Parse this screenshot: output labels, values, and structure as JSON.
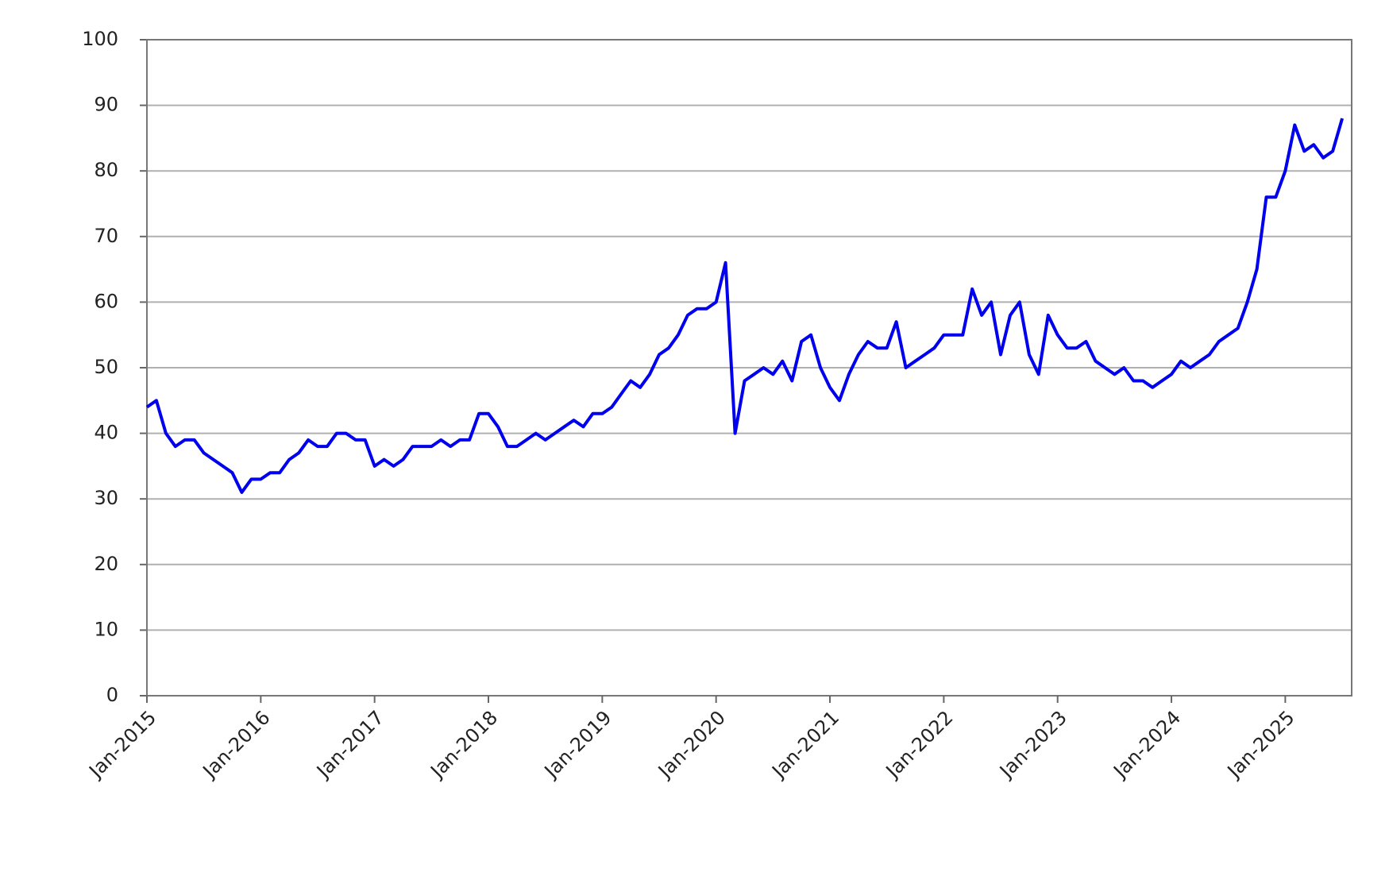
{
  "chart_data": {
    "type": "line",
    "x": [
      "2015-01",
      "2015-02",
      "2015-03",
      "2015-04",
      "2015-05",
      "2015-06",
      "2015-07",
      "2015-08",
      "2015-09",
      "2015-10",
      "2015-11",
      "2015-12",
      "2016-01",
      "2016-02",
      "2016-03",
      "2016-04",
      "2016-05",
      "2016-06",
      "2016-07",
      "2016-08",
      "2016-09",
      "2016-10",
      "2016-11",
      "2016-12",
      "2017-01",
      "2017-02",
      "2017-03",
      "2017-04",
      "2017-05",
      "2017-06",
      "2017-07",
      "2017-08",
      "2017-09",
      "2017-10",
      "2017-11",
      "2017-12",
      "2018-01",
      "2018-02",
      "2018-03",
      "2018-04",
      "2018-05",
      "2018-06",
      "2018-07",
      "2018-08",
      "2018-09",
      "2018-10",
      "2018-11",
      "2018-12",
      "2019-01",
      "2019-02",
      "2019-03",
      "2019-04",
      "2019-05",
      "2019-06",
      "2019-07",
      "2019-08",
      "2019-09",
      "2019-10",
      "2019-11",
      "2019-12",
      "2020-01",
      "2020-02",
      "2020-03",
      "2020-04",
      "2020-05",
      "2020-06",
      "2020-07",
      "2020-08",
      "2020-09",
      "2020-10",
      "2020-11",
      "2020-12",
      "2021-01",
      "2021-02",
      "2021-03",
      "2021-04",
      "2021-05",
      "2021-06",
      "2021-07",
      "2021-08",
      "2021-09",
      "2021-10",
      "2021-11",
      "2021-12",
      "2022-01",
      "2022-02",
      "2022-03",
      "2022-04",
      "2022-05",
      "2022-06",
      "2022-07",
      "2022-08",
      "2022-09",
      "2022-10",
      "2022-11",
      "2022-12",
      "2023-01",
      "2023-02",
      "2023-03",
      "2023-04",
      "2023-05",
      "2023-06",
      "2023-07",
      "2023-08",
      "2023-09",
      "2023-10",
      "2023-11",
      "2023-12",
      "2024-01",
      "2024-02",
      "2024-03",
      "2024-04",
      "2024-05",
      "2024-06",
      "2024-07",
      "2024-08",
      "2024-09",
      "2024-10",
      "2024-11",
      "2024-12",
      "2025-01",
      "2025-02",
      "2025-03",
      "2025-04",
      "2025-05",
      "2025-06",
      "2025-07"
    ],
    "series": [
      {
        "color": "#0000ee",
        "values": [
          44,
          45,
          40,
          38,
          39,
          39,
          37,
          36,
          35,
          34,
          31,
          33,
          33,
          34,
          34,
          36,
          37,
          39,
          38,
          38,
          40,
          40,
          39,
          39,
          35,
          36,
          35,
          36,
          38,
          38,
          38,
          39,
          38,
          39,
          39,
          43,
          43,
          41,
          38,
          38,
          39,
          40,
          39,
          40,
          41,
          42,
          41,
          43,
          43,
          44,
          46,
          48,
          47,
          49,
          52,
          53,
          55,
          58,
          59,
          59,
          60,
          66,
          40,
          48,
          49,
          50,
          49,
          51,
          48,
          54,
          55,
          50,
          47,
          45,
          49,
          52,
          54,
          53,
          53,
          57,
          50,
          51,
          52,
          53,
          55,
          55,
          55,
          62,
          58,
          60,
          52,
          58,
          60,
          52,
          49,
          58,
          55,
          53,
          53,
          54,
          51,
          50,
          49,
          50,
          48,
          48,
          47,
          48,
          49,
          51,
          50,
          51,
          52,
          54,
          55,
          56,
          60,
          65,
          76,
          76,
          80,
          87,
          83,
          84,
          82,
          83,
          88
        ]
      }
    ],
    "xlim": [
      "2015-01",
      "2025-08"
    ],
    "xticks": [
      {
        "value": "2015-01",
        "label": "Jan-2015"
      },
      {
        "value": "2016-01",
        "label": "Jan-2016"
      },
      {
        "value": "2017-01",
        "label": "Jan-2017"
      },
      {
        "value": "2018-01",
        "label": "Jan-2018"
      },
      {
        "value": "2019-01",
        "label": "Jan-2019"
      },
      {
        "value": "2020-01",
        "label": "Jan-2020"
      },
      {
        "value": "2021-01",
        "label": "Jan-2021"
      },
      {
        "value": "2022-01",
        "label": "Jan-2022"
      },
      {
        "value": "2023-01",
        "label": "Jan-2023"
      },
      {
        "value": "2024-01",
        "label": "Jan-2024"
      },
      {
        "value": "2025-01",
        "label": "Jan-2025"
      }
    ],
    "ylim": [
      0,
      100
    ],
    "yticks": [
      0,
      10,
      20,
      30,
      40,
      50,
      60,
      70,
      80,
      90,
      100
    ],
    "grid": true
  }
}
